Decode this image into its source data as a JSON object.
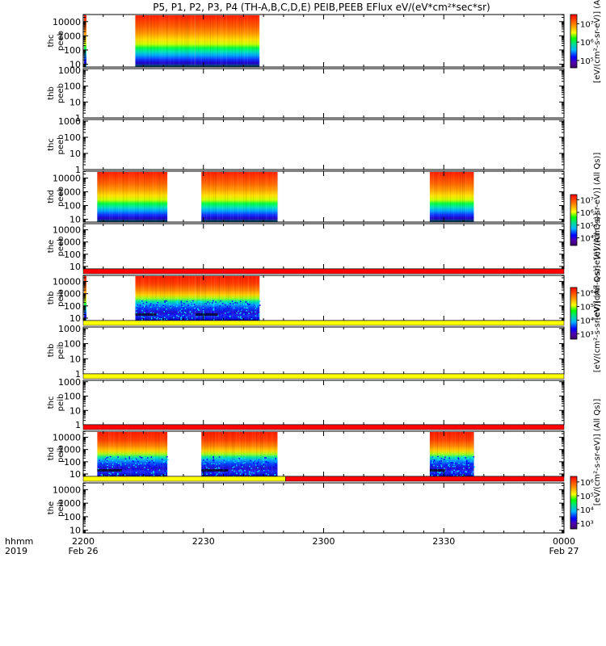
{
  "chart_data": {
    "type": "heatmap",
    "title": "P5, P1, P2, P3, P4 (TH-A,B,C,D,E) PEIB,PEEB EFlux eV/(eV*cm²*sec*sr)",
    "xaxis": {
      "corner_labels": [
        "hhmm",
        "2019"
      ],
      "ticks": [
        {
          "t": 0,
          "label": "2200",
          "sub": "Feb 26"
        },
        {
          "t": 30,
          "label": "2230",
          "sub": ""
        },
        {
          "t": 60,
          "label": "2300",
          "sub": ""
        },
        {
          "t": 90,
          "label": "2330",
          "sub": ""
        },
        {
          "t": 120,
          "label": "0000",
          "sub": "Feb 27"
        }
      ],
      "range_min": [
        0,
        120
      ]
    },
    "colorbars": [
      {
        "panel": "thc peeb",
        "label": "[eV/(cm²-s-sr-eV)] (Al",
        "ticks": [
          "10⁷",
          "10⁶",
          "10⁵"
        ],
        "exps": [
          7,
          6,
          5
        ],
        "range_exp": [
          4.6,
          7.5
        ]
      },
      {
        "panel": "thd peeb",
        "label": "[eV/(cm²-s-sr-eV)] (All Qs)]",
        "ticks": [
          "10⁷",
          "10⁶",
          "10⁵",
          "10⁴"
        ],
        "exps": [
          7,
          6,
          5,
          4
        ],
        "range_exp": [
          3.4,
          7.4
        ]
      },
      {
        "panel": "the peeb",
        "label": "[eV/(cm²-s-sr-eV)] (All Qs)]",
        "ticks": [],
        "exps": [],
        "range_exp": null
      },
      {
        "panel": "thd peib",
        "label": "[eV/(cm²-s-sr-eV)] (All Qs)]",
        "ticks": [
          "10⁶",
          "10⁵",
          "10⁴",
          "10³"
        ],
        "exps": [
          6,
          5,
          4,
          3
        ],
        "range_exp": [
          2.6,
          6.4
        ]
      },
      {
        "panel": "thc peib",
        "label": "[eV/(cm²-s-sr-eV)] (All Qs)]",
        "ticks": [
          "10⁶",
          "10⁵",
          "10⁴",
          "10³"
        ],
        "exps": [
          6,
          5,
          4,
          3
        ],
        "range_exp": [
          2.6,
          6.4
        ]
      }
    ],
    "panels": [
      {
        "label": [
          "thc",
          "peeb"
        ],
        "yticks": [
          "10",
          "100",
          "1000",
          "10000"
        ],
        "ymin_log": 0.8,
        "ymax_log": 4.5,
        "blocks": [
          {
            "t0": 13,
            "t1": 28,
            "kind": "e"
          },
          {
            "t0": 28,
            "t1": 44,
            "kind": "e"
          }
        ],
        "flag": null
      },
      {
        "label": [
          "thb",
          "peeb"
        ],
        "yticks": [
          "1",
          "10",
          "100",
          "1000"
        ],
        "ymin_log": 0,
        "ymax_log": 3.1,
        "blocks": [],
        "flag": null
      },
      {
        "label": [
          "thc",
          "peeb"
        ],
        "yticks": [
          "1",
          "10",
          "100",
          "1000"
        ],
        "ymin_log": 0,
        "ymax_log": 3.1,
        "blocks": [],
        "flag": null
      },
      {
        "label": [
          "thd",
          "peeb"
        ],
        "yticks": [
          "10",
          "100",
          "1000",
          "10000"
        ],
        "ymin_log": 0.8,
        "ymax_log": 4.5,
        "blocks": [
          {
            "t0": 3.5,
            "t1": 21,
            "kind": "e"
          },
          {
            "t0": 29.5,
            "t1": 48.5,
            "kind": "e"
          },
          {
            "t0": 86.5,
            "t1": 97.5,
            "kind": "e"
          }
        ],
        "flag": null
      },
      {
        "label": [
          "the",
          "peeb"
        ],
        "yticks": [
          "10",
          "100",
          "1000",
          "10000"
        ],
        "ymin_log": 0.8,
        "ymax_log": 4.5,
        "blocks": [],
        "flag": "red"
      },
      {
        "label": [
          "thb",
          "peib"
        ],
        "yticks": [
          "10",
          "100",
          "1000",
          "10000"
        ],
        "ymin_log": 0.8,
        "ymax_log": 4.5,
        "blocks": [
          {
            "t0": 13,
            "t1": 28,
            "kind": "i"
          },
          {
            "t0": 28,
            "t1": 44,
            "kind": "i"
          }
        ],
        "flag": "yellow"
      },
      {
        "label": [
          "thb",
          "peib"
        ],
        "yticks": [
          "1",
          "10",
          "100",
          "1000"
        ],
        "ymin_log": 0,
        "ymax_log": 3.1,
        "blocks": [],
        "flag": "yellow"
      },
      {
        "label": [
          "thc",
          "peib"
        ],
        "yticks": [
          "1",
          "10",
          "100",
          "1000"
        ],
        "ymin_log": 0,
        "ymax_log": 3.1,
        "blocks": [],
        "flag": "red"
      },
      {
        "label": [
          "thd",
          "peib"
        ],
        "yticks": [
          "10",
          "100",
          "1000",
          "10000"
        ],
        "ymin_log": 0.8,
        "ymax_log": 4.5,
        "blocks": [
          {
            "t0": 3.5,
            "t1": 21,
            "kind": "i"
          },
          {
            "t0": 29.5,
            "t1": 48.5,
            "kind": "i"
          },
          {
            "t0": 86.5,
            "t1": 97.5,
            "kind": "i"
          }
        ],
        "flag": "split"
      },
      {
        "label": [
          "the",
          "peib"
        ],
        "yticks": [
          "10",
          "100",
          "1000",
          "10000"
        ],
        "ymin_log": 0.8,
        "ymax_log": 4.5,
        "blocks": [],
        "flag": null
      }
    ],
    "flag_split_t": 50.5,
    "colors": {
      "flag_red": "#ff0000",
      "flag_yellow": "#ffff00"
    }
  }
}
